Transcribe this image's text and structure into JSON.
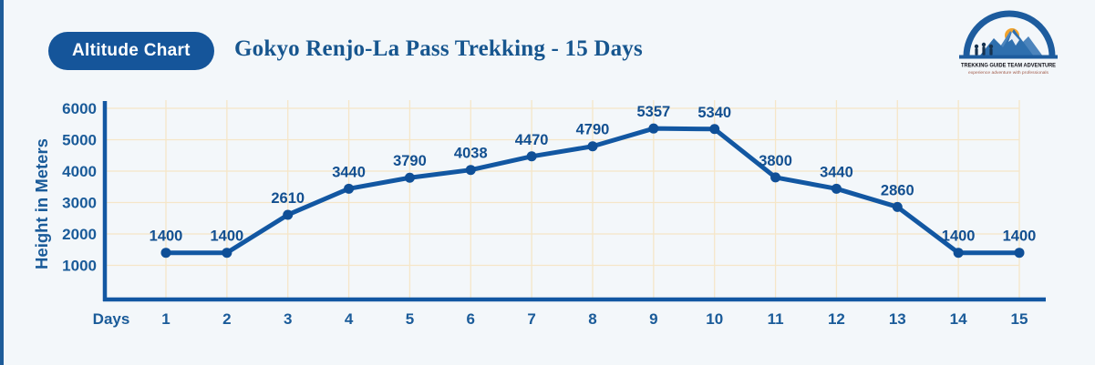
{
  "page": {
    "bg": "#F3F7FA",
    "accent_bar_color": "#1E5C99"
  },
  "header": {
    "badge_label": "Altitude Chart",
    "title": "Gokyo Renjo-La Pass Trekking - 15 Days",
    "logo": {
      "name": "TREKKING GUIDE TEAM ADVENTURE",
      "tagline": "experience adventure with professionals"
    }
  },
  "chart_data": {
    "type": "line",
    "title": "Gokyo Renjo-La Pass Trekking - 15 Days",
    "xlabel": "Days",
    "ylabel": "Height in Meters",
    "x": [
      1,
      2,
      3,
      4,
      5,
      6,
      7,
      8,
      9,
      10,
      11,
      12,
      13,
      14,
      15
    ],
    "values": [
      1400,
      1400,
      2610,
      3440,
      3790,
      4038,
      4470,
      4790,
      5357,
      5340,
      3800,
      3440,
      2860,
      1400,
      1400
    ],
    "point_labels": [
      "1400",
      "1400",
      "2610",
      "3440",
      "3790",
      "4038",
      "4470",
      "4790",
      "5357",
      "5340",
      "3800",
      "3440",
      "2860",
      "1400",
      "1400"
    ],
    "yticks": [
      1000,
      2000,
      3000,
      4000,
      5000,
      6000
    ],
    "ylim": [
      -100,
      6300
    ],
    "grid": true,
    "legend": "none",
    "colors": {
      "line": "#1257A2",
      "point": "#0F4F97",
      "grid": "#F5E6C8",
      "axis": "#1257A2",
      "tick_text": "#1A5B99",
      "value_label": "#124F90"
    }
  }
}
